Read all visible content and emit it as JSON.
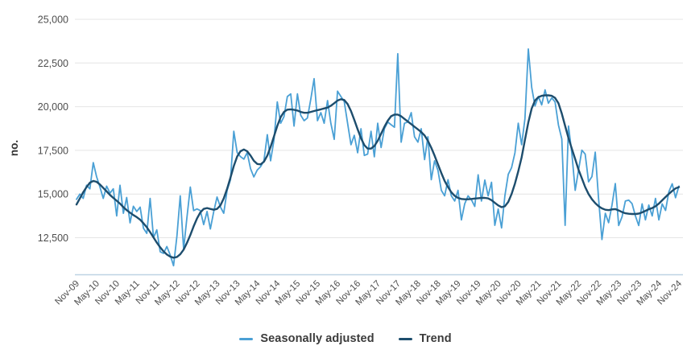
{
  "chart_data": {
    "type": "line",
    "title": "",
    "xlabel": "",
    "ylabel": "no.",
    "x_frequency": "monthly",
    "x_range": [
      "Nov-09",
      "Nov-24"
    ],
    "ylim": [
      10400,
      25650
    ],
    "grid": "horizontal",
    "legend_position": "bottom-center",
    "y_axis": {
      "title": "no.",
      "ticks": [
        {
          "value": 25000,
          "label": "25,000"
        },
        {
          "value": 22500,
          "label": "22,500"
        },
        {
          "value": 20000,
          "label": "20,000"
        },
        {
          "value": 17500,
          "label": "17,500"
        },
        {
          "value": 15000,
          "label": "15,000"
        },
        {
          "value": 12500,
          "label": "12,500"
        }
      ]
    },
    "x_axis": {
      "tick_labels": [
        "Nov-09",
        "May-10",
        "Nov-10",
        "May-11",
        "Nov-11",
        "May-12",
        "Nov-12",
        "May-13",
        "Nov-13",
        "May-14",
        "Nov-14",
        "May-15",
        "Nov-15",
        "May-16",
        "Nov-16",
        "May-17",
        "Nov-17",
        "May-18",
        "Nov-18",
        "May-19",
        "Nov-19",
        "May-20",
        "Nov-20",
        "May-21",
        "Nov-21",
        "May-22",
        "Nov-22",
        "May-23",
        "Nov-23",
        "May-24",
        "Nov-24"
      ],
      "months_between_ticks": 6
    },
    "series": [
      {
        "name": "Seasonally adjusted",
        "color": "#4AA0D5",
        "values": [
          14700,
          15000,
          14750,
          15500,
          15300,
          16800,
          16000,
          15400,
          14750,
          15450,
          15050,
          15300,
          13750,
          15500,
          13900,
          14800,
          13350,
          14300,
          14000,
          14250,
          13050,
          12750,
          14750,
          12500,
          12950,
          11700,
          11600,
          12000,
          11500,
          10900,
          12600,
          14900,
          11850,
          13650,
          15400,
          14050,
          14150,
          14050,
          13250,
          14000,
          13000,
          14000,
          14830,
          14260,
          13900,
          15210,
          15820,
          18590,
          17370,
          17140,
          17000,
          17370,
          16450,
          15980,
          16370,
          16570,
          16900,
          18400,
          16900,
          18100,
          20270,
          19050,
          19430,
          20580,
          20730,
          18890,
          20730,
          19510,
          19200,
          19350,
          20430,
          21600,
          19200,
          19660,
          19050,
          20350,
          19050,
          18130,
          20890,
          20580,
          20300,
          19050,
          17820,
          18360,
          17360,
          18740,
          17210,
          17290,
          18590,
          17130,
          19050,
          17660,
          18740,
          19120,
          18970,
          18820,
          23030,
          17970,
          19050,
          19120,
          19660,
          18280,
          17970,
          18740,
          16970,
          18280,
          15820,
          16900,
          16360,
          15210,
          14900,
          15820,
          14900,
          14600,
          15210,
          13520,
          14440,
          14900,
          14670,
          14290,
          16100,
          14600,
          15800,
          14900,
          15670,
          13210,
          14140,
          13060,
          14900,
          16130,
          16510,
          17360,
          19050,
          17820,
          19300,
          23300,
          21100,
          20040,
          20580,
          20100,
          20960,
          20200,
          20500,
          20270,
          18950,
          18150,
          13210,
          18890,
          17360,
          15210,
          16360,
          17510,
          17290,
          15700,
          16000,
          17400,
          14700,
          12400,
          13900,
          13360,
          14370,
          15600,
          13200,
          13700,
          14600,
          14650,
          14450,
          13750,
          13200,
          14440,
          13520,
          14370,
          13750,
          14750,
          13520,
          14440,
          14060,
          15130,
          15590,
          14790,
          15450
        ]
      },
      {
        "name": "Trend",
        "color": "#1D4D6D",
        "values": [
          14400,
          14750,
          15100,
          15400,
          15650,
          15750,
          15700,
          15550,
          15350,
          15150,
          14950,
          14780,
          14620,
          14450,
          14250,
          14080,
          13930,
          13800,
          13680,
          13530,
          13330,
          13100,
          12820,
          12520,
          12220,
          11950,
          11720,
          11540,
          11420,
          11360,
          11400,
          11550,
          11820,
          12200,
          12650,
          13150,
          13600,
          13950,
          14150,
          14200,
          14150,
          14100,
          14150,
          14350,
          14750,
          15300,
          15950,
          16600,
          17150,
          17450,
          17550,
          17450,
          17200,
          16900,
          16720,
          16700,
          16850,
          17200,
          17700,
          18300,
          18900,
          19400,
          19700,
          19830,
          19850,
          19820,
          19780,
          19700,
          19650,
          19650,
          19700,
          19750,
          19800,
          19850,
          19900,
          19950,
          20050,
          20200,
          20350,
          20430,
          20380,
          20150,
          19750,
          19250,
          18700,
          18200,
          17800,
          17600,
          17600,
          17750,
          18050,
          18450,
          18850,
          19200,
          19450,
          19550,
          19550,
          19450,
          19300,
          19150,
          19000,
          18850,
          18700,
          18550,
          18350,
          18050,
          17650,
          17200,
          16700,
          16200,
          15750,
          15400,
          15100,
          14900,
          14780,
          14720,
          14700,
          14700,
          14720,
          14740,
          14760,
          14780,
          14780,
          14750,
          14650,
          14500,
          14350,
          14250,
          14300,
          14550,
          15000,
          15600,
          16300,
          17100,
          18100,
          19100,
          19900,
          20350,
          20550,
          20620,
          20650,
          20650,
          20620,
          20500,
          20200,
          19600,
          18900,
          18200,
          17600,
          17000,
          16400,
          15900,
          15400,
          15000,
          14700,
          14480,
          14300,
          14180,
          14100,
          14080,
          14120,
          14140,
          14060,
          13970,
          13900,
          13870,
          13860,
          13860,
          13880,
          13950,
          14040,
          14130,
          14200,
          14300,
          14450,
          14640,
          14830,
          15010,
          15180,
          15320,
          15400
        ]
      }
    ],
    "colors": {
      "gridline": "#e4e4e4",
      "axis_line": "#bed3e4",
      "tick_text": "#4d4d4d",
      "axis_title_text": "#333333",
      "legend_text": "#3b3b3b"
    }
  },
  "legend": {
    "items": [
      {
        "label": "Seasonally adjusted"
      },
      {
        "label": "Trend"
      }
    ]
  }
}
